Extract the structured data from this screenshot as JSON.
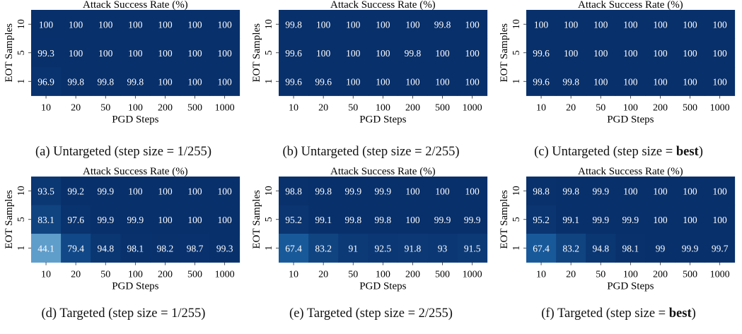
{
  "chart_data": [
    {
      "type": "heatmap",
      "title": "Attack Success Rate (%)",
      "xlabel": "PGD Steps",
      "ylabel": "EOT Samples",
      "x": [
        "10",
        "20",
        "50",
        "100",
        "200",
        "500",
        "1000"
      ],
      "y": [
        "10",
        "5",
        "1"
      ],
      "values": [
        [
          100,
          100,
          100,
          100,
          100,
          100,
          100
        ],
        [
          99.3,
          100,
          100,
          100,
          100,
          100,
          100
        ],
        [
          96.9,
          99.8,
          99.8,
          99.8,
          100,
          100,
          100
        ]
      ],
      "caption": {
        "prefix": "(a) Untargeted (step size = ",
        "emph": "",
        "text": "1/255",
        "suffix": ")"
      },
      "colormap": "blues"
    },
    {
      "type": "heatmap",
      "title": "Attack Success Rate (%)",
      "xlabel": "PGD Steps",
      "ylabel": "EOT Samples",
      "x": [
        "10",
        "20",
        "50",
        "100",
        "200",
        "500",
        "1000"
      ],
      "y": [
        "10",
        "5",
        "1"
      ],
      "values": [
        [
          99.8,
          100,
          100,
          100,
          100,
          99.8,
          100
        ],
        [
          99.6,
          100,
          100,
          100,
          99.8,
          100,
          100
        ],
        [
          99.6,
          99.6,
          100,
          100,
          100,
          100,
          100
        ]
      ],
      "caption": {
        "prefix": "(b) Untargeted (step size = ",
        "emph": "",
        "text": "2/255",
        "suffix": ")"
      },
      "colormap": "blues"
    },
    {
      "type": "heatmap",
      "title": "Attack Success Rate (%)",
      "xlabel": "PGD Steps",
      "ylabel": "EOT Samples",
      "x": [
        "10",
        "20",
        "50",
        "100",
        "200",
        "500",
        "1000"
      ],
      "y": [
        "10",
        "5",
        "1"
      ],
      "values": [
        [
          100,
          100,
          100,
          100,
          100,
          100,
          100
        ],
        [
          99.6,
          100,
          100,
          100,
          100,
          100,
          100
        ],
        [
          99.6,
          99.8,
          100,
          100,
          100,
          100,
          100
        ]
      ],
      "caption": {
        "prefix": "(c) Untargeted (step size = ",
        "emph": "best",
        "text": "",
        "suffix": ")"
      },
      "colormap": "blues"
    },
    {
      "type": "heatmap",
      "title": "Attack Success Rate (%)",
      "xlabel": "PGD Steps",
      "ylabel": "EOT Samples",
      "x": [
        "10",
        "20",
        "50",
        "100",
        "200",
        "500",
        "1000"
      ],
      "y": [
        "10",
        "5",
        "1"
      ],
      "values": [
        [
          93.5,
          99.2,
          99.9,
          100,
          100,
          100,
          100
        ],
        [
          83.1,
          97.6,
          99.9,
          99.9,
          100,
          100,
          100
        ],
        [
          44.1,
          79.4,
          94.8,
          98.1,
          98.2,
          98.7,
          99.3
        ]
      ],
      "caption": {
        "prefix": "(d) Targeted (step size = ",
        "emph": "",
        "text": "1/255",
        "suffix": ")"
      },
      "colormap": "blues"
    },
    {
      "type": "heatmap",
      "title": "Attack Success Rate (%)",
      "xlabel": "PGD Steps",
      "ylabel": "EOT Samples",
      "x": [
        "10",
        "20",
        "50",
        "100",
        "200",
        "500",
        "1000"
      ],
      "y": [
        "10",
        "5",
        "1"
      ],
      "values": [
        [
          98.8,
          99.8,
          99.9,
          99.9,
          100,
          100,
          100
        ],
        [
          95.2,
          99.1,
          99.8,
          99.8,
          100,
          99.9,
          99.9
        ],
        [
          67.4,
          83.2,
          91,
          92.5,
          91.8,
          93,
          91.5
        ]
      ],
      "caption": {
        "prefix": "(e) Targeted (step size = ",
        "emph": "",
        "text": "2/255",
        "suffix": ")"
      },
      "colormap": "blues"
    },
    {
      "type": "heatmap",
      "title": "Attack Success Rate (%)",
      "xlabel": "PGD Steps",
      "ylabel": "EOT Samples",
      "x": [
        "10",
        "20",
        "50",
        "100",
        "200",
        "500",
        "1000"
      ],
      "y": [
        "10",
        "5",
        "1"
      ],
      "values": [
        [
          98.8,
          99.8,
          99.9,
          100,
          100,
          100,
          100
        ],
        [
          95.2,
          99.1,
          99.9,
          99.9,
          100,
          100,
          100
        ],
        [
          67.4,
          83.2,
          94.8,
          98.1,
          99,
          99.9,
          99.7
        ]
      ],
      "caption": {
        "prefix": "(f) Targeted (step size = ",
        "emph": "best",
        "text": "",
        "suffix": ")"
      },
      "colormap": "blues"
    }
  ]
}
